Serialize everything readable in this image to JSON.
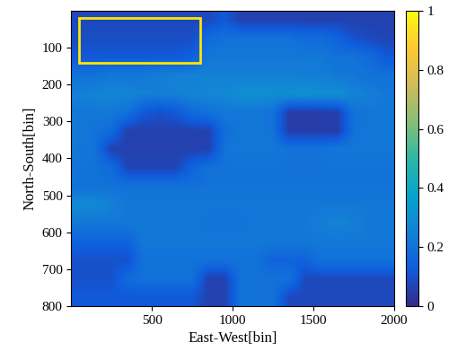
{
  "chart_data": {
    "type": "heatmap",
    "x_label": "East-West[bin]",
    "y_label": "North-South[bin]",
    "xlim": [
      0,
      2000
    ],
    "xticks": [
      500,
      1000,
      1500,
      2000
    ],
    "ylim": [
      800,
      0
    ],
    "yticks": [
      100,
      200,
      300,
      400,
      500,
      600,
      700,
      800
    ],
    "colorbar_range": [
      0,
      1
    ],
    "colorbar_ticks": [
      0,
      0.2,
      0.4,
      0.6,
      0.8,
      1
    ],
    "highlight_box": {
      "x": [
        50,
        800
      ],
      "y": [
        20,
        140
      ]
    },
    "cells": [
      [
        0.08,
        0.08,
        0.08,
        0.08,
        0.08,
        0.08,
        0.08,
        0.08,
        0.08,
        0.12,
        0.06,
        0.06,
        0.06,
        0.06,
        0.06,
        0.06,
        0.06,
        0.06,
        0.06,
        0.06
      ],
      [
        0.09,
        0.09,
        0.09,
        0.09,
        0.09,
        0.09,
        0.09,
        0.09,
        0.18,
        0.2,
        0.2,
        0.2,
        0.2,
        0.2,
        0.18,
        0.18,
        0.15,
        0.1,
        0.08,
        0.07
      ],
      [
        0.12,
        0.12,
        0.12,
        0.12,
        0.12,
        0.12,
        0.12,
        0.14,
        0.22,
        0.22,
        0.22,
        0.22,
        0.22,
        0.22,
        0.22,
        0.22,
        0.2,
        0.2,
        0.18,
        0.12
      ],
      [
        0.2,
        0.2,
        0.22,
        0.22,
        0.22,
        0.24,
        0.25,
        0.25,
        0.25,
        0.25,
        0.25,
        0.25,
        0.25,
        0.25,
        0.24,
        0.24,
        0.22,
        0.22,
        0.2,
        0.2
      ],
      [
        0.25,
        0.26,
        0.27,
        0.26,
        0.25,
        0.24,
        0.25,
        0.26,
        0.27,
        0.28,
        0.3,
        0.3,
        0.3,
        0.3,
        0.31,
        0.3,
        0.3,
        0.26,
        0.24,
        0.22
      ],
      [
        0.22,
        0.22,
        0.22,
        0.2,
        0.12,
        0.1,
        0.12,
        0.18,
        0.2,
        0.22,
        0.22,
        0.22,
        0.2,
        0.05,
        0.05,
        0.05,
        0.06,
        0.2,
        0.22,
        0.22
      ],
      [
        0.22,
        0.2,
        0.18,
        0.06,
        0.06,
        0.06,
        0.06,
        0.06,
        0.06,
        0.18,
        0.22,
        0.22,
        0.2,
        0.05,
        0.05,
        0.05,
        0.05,
        0.2,
        0.22,
        0.22
      ],
      [
        0.22,
        0.2,
        0.06,
        0.06,
        0.06,
        0.06,
        0.06,
        0.06,
        0.06,
        0.2,
        0.22,
        0.22,
        0.22,
        0.2,
        0.2,
        0.2,
        0.22,
        0.22,
        0.22,
        0.22
      ],
      [
        0.2,
        0.2,
        0.18,
        0.07,
        0.07,
        0.07,
        0.07,
        0.15,
        0.2,
        0.2,
        0.2,
        0.2,
        0.2,
        0.2,
        0.2,
        0.2,
        0.2,
        0.2,
        0.2,
        0.2
      ],
      [
        0.2,
        0.2,
        0.2,
        0.2,
        0.2,
        0.2,
        0.2,
        0.2,
        0.2,
        0.2,
        0.2,
        0.2,
        0.2,
        0.2,
        0.2,
        0.2,
        0.2,
        0.2,
        0.2,
        0.2
      ],
      [
        0.28,
        0.28,
        0.25,
        0.22,
        0.22,
        0.22,
        0.22,
        0.22,
        0.22,
        0.22,
        0.22,
        0.22,
        0.22,
        0.22,
        0.22,
        0.22,
        0.22,
        0.22,
        0.22,
        0.22
      ],
      [
        0.22,
        0.22,
        0.22,
        0.22,
        0.22,
        0.22,
        0.22,
        0.22,
        0.2,
        0.2,
        0.2,
        0.22,
        0.22,
        0.22,
        0.22,
        0.24,
        0.26,
        0.24,
        0.22,
        0.22
      ],
      [
        0.15,
        0.15,
        0.15,
        0.15,
        0.22,
        0.22,
        0.22,
        0.22,
        0.22,
        0.22,
        0.22,
        0.22,
        0.22,
        0.22,
        0.22,
        0.22,
        0.22,
        0.22,
        0.22,
        0.22
      ],
      [
        0.1,
        0.1,
        0.1,
        0.1,
        0.2,
        0.2,
        0.2,
        0.2,
        0.2,
        0.2,
        0.2,
        0.2,
        0.15,
        0.15,
        0.15,
        0.2,
        0.2,
        0.2,
        0.2,
        0.2
      ],
      [
        0.1,
        0.1,
        0.1,
        0.18,
        0.2,
        0.2,
        0.2,
        0.2,
        0.06,
        0.06,
        0.2,
        0.2,
        0.2,
        0.2,
        0.08,
        0.08,
        0.08,
        0.08,
        0.08,
        0.08
      ],
      [
        0.12,
        0.12,
        0.12,
        0.12,
        0.12,
        0.12,
        0.12,
        0.12,
        0.06,
        0.06,
        0.2,
        0.2,
        0.2,
        0.08,
        0.08,
        0.08,
        0.08,
        0.08,
        0.08,
        0.08
      ]
    ]
  }
}
